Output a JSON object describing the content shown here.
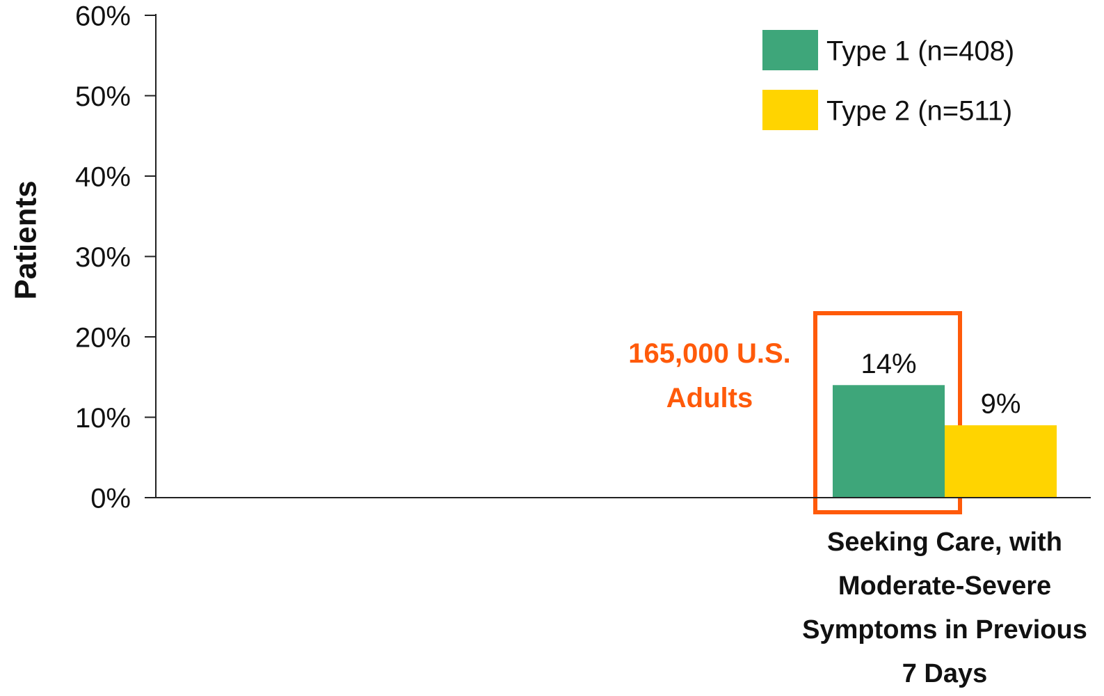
{
  "chart_data": {
    "type": "bar",
    "y_label": "Patients",
    "categories": [
      "Seeking Care, with Moderate-Severe Symptoms in Previous 7 Days"
    ],
    "series": [
      {
        "name": "Type 1 (n=408)",
        "color": "#3ea67a",
        "values": [
          14
        ],
        "value_labels": [
          "14%"
        ]
      },
      {
        "name": "Type 2 (n=511)",
        "color": "#ffd400",
        "values": [
          9
        ],
        "value_labels": [
          "9%"
        ]
      }
    ],
    "annotation": "165,000 U.S. Adults",
    "ylim": [
      0,
      60
    ],
    "yticks": [
      {
        "value": 0,
        "label": "0%"
      },
      {
        "value": 10,
        "label": "10%"
      },
      {
        "value": 20,
        "label": "20%"
      },
      {
        "value": 30,
        "label": "30%"
      },
      {
        "value": 40,
        "label": "40%"
      },
      {
        "value": 50,
        "label": "50%"
      },
      {
        "value": 60,
        "label": "60%"
      }
    ],
    "legend": "top-right"
  }
}
